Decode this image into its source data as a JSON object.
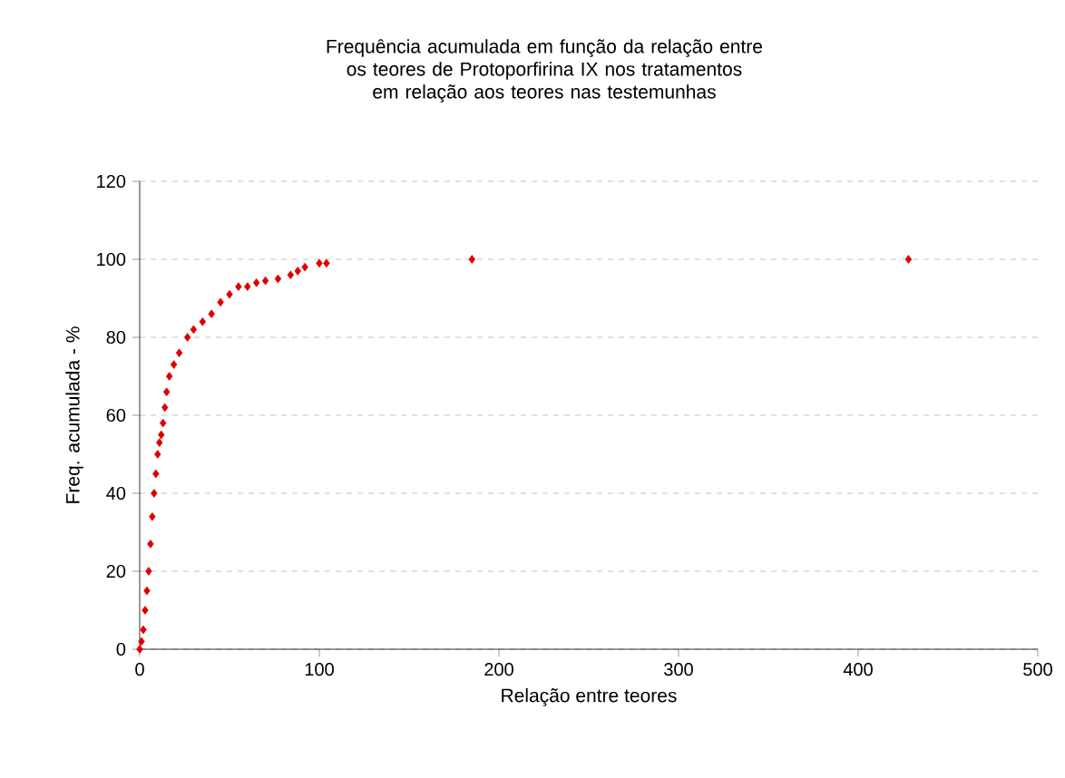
{
  "chart_data": {
    "type": "scatter",
    "title": "Frequência acumulada em função da relação entre os teores de Protoporfirina IX nos tratamentos em relação aos teores nas testemunhas",
    "xlabel": "Relação entre teores",
    "ylabel": "Freq. acumulada - %",
    "series": [
      {
        "color": "#e00000",
        "x": [
          0,
          1,
          2,
          3,
          4,
          5,
          6,
          7,
          8,
          9,
          10,
          11,
          12,
          13,
          14,
          15,
          16.5,
          19,
          22,
          26.6,
          30,
          35,
          40,
          45,
          50,
          55,
          60,
          65,
          70,
          77,
          84,
          88,
          92,
          100,
          104,
          185,
          428
        ],
        "values": [
          0,
          2,
          5,
          10,
          15,
          20,
          27,
          34,
          40,
          45,
          50,
          53,
          55,
          58,
          62,
          66,
          70,
          73,
          76,
          80,
          82,
          84,
          86,
          89,
          91,
          93,
          93,
          94,
          94.5,
          95,
          96,
          97,
          98,
          99,
          99,
          100,
          100
        ]
      }
    ],
    "xlim": [
      0,
      500
    ],
    "ylim": [
      0,
      120
    ],
    "xticks": [
      0,
      100,
      200,
      300,
      400,
      500
    ],
    "yticks": [
      0,
      20,
      40,
      60,
      80,
      100,
      120
    ],
    "grid": "y",
    "marker": "diamond"
  }
}
